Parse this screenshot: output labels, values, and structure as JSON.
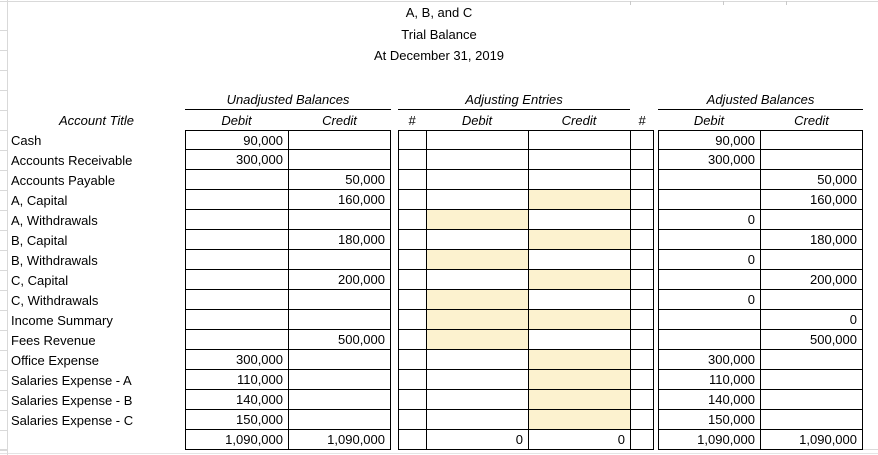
{
  "titles": {
    "company": "A, B, and C",
    "report": "Trial Balance",
    "date": "At December 31, 2019"
  },
  "headers": {
    "account_title": "Account Title",
    "debit": "Debit",
    "credit": "Credit",
    "ref": "#",
    "groups": [
      {
        "label": "Unadjusted Balances"
      },
      {
        "label": "Adjusting Entries"
      },
      {
        "label": "Adjusted Balances"
      }
    ]
  },
  "colors": {
    "highlight": "#fcf2cf",
    "gridline": "#d9d9d9",
    "border": "#000000"
  },
  "rows": [
    {
      "account": "Cash",
      "unadj_debit": "90,000",
      "unadj_credit": "",
      "ref1": "",
      "adj_debit": "",
      "adj_credit": "",
      "ref2": "",
      "adjusted_debit": "90,000",
      "adjusted_credit": "",
      "highlight_debit": false,
      "highlight_credit": false
    },
    {
      "account": "Accounts Receivable",
      "unadj_debit": "300,000",
      "unadj_credit": "",
      "ref1": "",
      "adj_debit": "",
      "adj_credit": "",
      "ref2": "",
      "adjusted_debit": "300,000",
      "adjusted_credit": "",
      "highlight_debit": false,
      "highlight_credit": false
    },
    {
      "account": "Accounts Payable",
      "unadj_debit": "",
      "unadj_credit": "50,000",
      "ref1": "",
      "adj_debit": "",
      "adj_credit": "",
      "ref2": "",
      "adjusted_debit": "",
      "adjusted_credit": "50,000",
      "highlight_debit": false,
      "highlight_credit": false
    },
    {
      "account": "A, Capital",
      "unadj_debit": "",
      "unadj_credit": "160,000",
      "ref1": "",
      "adj_debit": "",
      "adj_credit": "",
      "ref2": "",
      "adjusted_debit": "",
      "adjusted_credit": "160,000",
      "highlight_debit": false,
      "highlight_credit": true
    },
    {
      "account": "A, Withdrawals",
      "unadj_debit": "",
      "unadj_credit": "",
      "ref1": "",
      "adj_debit": "",
      "adj_credit": "",
      "ref2": "",
      "adjusted_debit": "0",
      "adjusted_credit": "",
      "highlight_debit": true,
      "highlight_credit": false
    },
    {
      "account": "B, Capital",
      "unadj_debit": "",
      "unadj_credit": "180,000",
      "ref1": "",
      "adj_debit": "",
      "adj_credit": "",
      "ref2": "",
      "adjusted_debit": "",
      "adjusted_credit": "180,000",
      "highlight_debit": false,
      "highlight_credit": true
    },
    {
      "account": "B, Withdrawals",
      "unadj_debit": "",
      "unadj_credit": "",
      "ref1": "",
      "adj_debit": "",
      "adj_credit": "",
      "ref2": "",
      "adjusted_debit": "0",
      "adjusted_credit": "",
      "highlight_debit": true,
      "highlight_credit": false
    },
    {
      "account": "C, Capital",
      "unadj_debit": "",
      "unadj_credit": "200,000",
      "ref1": "",
      "adj_debit": "",
      "adj_credit": "",
      "ref2": "",
      "adjusted_debit": "",
      "adjusted_credit": "200,000",
      "highlight_debit": false,
      "highlight_credit": true
    },
    {
      "account": "C, Withdrawals",
      "unadj_debit": "",
      "unadj_credit": "",
      "ref1": "",
      "adj_debit": "",
      "adj_credit": "",
      "ref2": "",
      "adjusted_debit": "0",
      "adjusted_credit": "",
      "highlight_debit": true,
      "highlight_credit": false
    },
    {
      "account": "Income Summary",
      "unadj_debit": "",
      "unadj_credit": "",
      "ref1": "",
      "adj_debit": "",
      "adj_credit": "",
      "ref2": "",
      "adjusted_debit": "",
      "adjusted_credit": "0",
      "highlight_debit": true,
      "highlight_credit": true
    },
    {
      "account": "Fees Revenue",
      "unadj_debit": "",
      "unadj_credit": "500,000",
      "ref1": "",
      "adj_debit": "",
      "adj_credit": "",
      "ref2": "",
      "adjusted_debit": "",
      "adjusted_credit": "500,000",
      "highlight_debit": true,
      "highlight_credit": false
    },
    {
      "account": "Office Expense",
      "unadj_debit": "300,000",
      "unadj_credit": "",
      "ref1": "",
      "adj_debit": "",
      "adj_credit": "",
      "ref2": "",
      "adjusted_debit": "300,000",
      "adjusted_credit": "",
      "highlight_debit": false,
      "highlight_credit": true
    },
    {
      "account": "Salaries Expense - A",
      "unadj_debit": "110,000",
      "unadj_credit": "",
      "ref1": "",
      "adj_debit": "",
      "adj_credit": "",
      "ref2": "",
      "adjusted_debit": "110,000",
      "adjusted_credit": "",
      "highlight_debit": false,
      "highlight_credit": true
    },
    {
      "account": "Salaries Expense - B",
      "unadj_debit": "140,000",
      "unadj_credit": "",
      "ref1": "",
      "adj_debit": "",
      "adj_credit": "",
      "ref2": "",
      "adjusted_debit": "140,000",
      "adjusted_credit": "",
      "highlight_debit": false,
      "highlight_credit": true
    },
    {
      "account": "Salaries Expense - C",
      "unadj_debit": "150,000",
      "unadj_credit": "",
      "ref1": "",
      "adj_debit": "",
      "adj_credit": "",
      "ref2": "",
      "adjusted_debit": "150,000",
      "adjusted_credit": "",
      "highlight_debit": false,
      "highlight_credit": true
    }
  ],
  "totals": {
    "unadjusted_debit": "1,090,000",
    "unadjusted_credit": "1,090,000",
    "adjusting_debit": "0",
    "adjusting_credit": "0",
    "adjusted_debit": "1,090,000",
    "adjusted_credit": "1,090,000"
  }
}
